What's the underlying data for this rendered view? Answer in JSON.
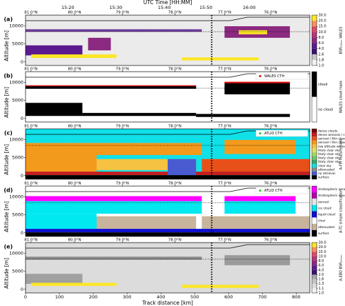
{
  "chart_data": [
    {
      "type": "heatmap",
      "panel_label": "(a)",
      "title": "UTC Time [HH:MM]",
      "ylabel": "Altitude [m]",
      "xlim": [
        0,
        840
      ],
      "ylim": [
        -1000,
        13000
      ],
      "yticks": [
        0,
        5000,
        10000
      ],
      "background": "#ebebeb",
      "x2ticks": [
        {
          "value": 125,
          "label": "15:20"
        },
        {
          "value": 267,
          "label": "15:30"
        },
        {
          "value": 410,
          "label": "15:40"
        },
        {
          "value": 533,
          "label": "15:50"
        },
        {
          "value": 661,
          "label": "16:00"
        }
      ],
      "lat_ticks": [
        {
          "value": 16,
          "label": "81.0°N"
        },
        {
          "value": 145,
          "label": "80.0°N"
        },
        {
          "value": 286,
          "label": "79.0°N"
        },
        {
          "value": 441,
          "label": "78.0°N"
        },
        {
          "value": 588,
          "label": "77.0°N"
        },
        {
          "value": 724,
          "label": "76.0°N"
        }
      ],
      "colorbar": {
        "label": "BSR₅₃₂ₙₘ WALES",
        "ticks": [
          {
            "value": 1,
            "label": "1.0"
          },
          1.8,
          2.6,
          {
            "value": 4,
            "label": "4.0"
          },
          {
            "value": 6,
            "label": "6.0"
          },
          {
            "value": 8,
            "label": "8.0"
          },
          {
            "value": 10,
            "label": "10.0"
          },
          {
            "value": 15,
            "label": "15.0"
          },
          {
            "value": 20,
            "label": "20.0"
          },
          {
            "value": 30,
            "label": "30.0"
          }
        ],
        "colors": [
          "#f2f2f2",
          "#c8c8c8",
          "#3b0f70",
          "#5c1a8f",
          "#8c2981",
          "#b73779",
          "#de4968",
          "#f7905c",
          "#fde725"
        ]
      }
    },
    {
      "type": "heatmap",
      "panel_label": "(b)",
      "ylabel": "Altitude [m]",
      "xlim": [
        0,
        840
      ],
      "ylim": [
        -1000,
        13000
      ],
      "yticks": [
        0,
        5000,
        10000
      ],
      "background": "#ffffff",
      "lat_ticks": [
        {
          "value": 16,
          "label": "81.0°N"
        },
        {
          "value": 145,
          "label": "80.0°N"
        },
        {
          "value": 286,
          "label": "79.0°N"
        },
        {
          "value": 441,
          "label": "78.0°N"
        },
        {
          "value": 588,
          "label": "77.0°N"
        },
        {
          "value": 724,
          "label": "76.0°N"
        }
      ],
      "legend": {
        "name": "WALES CTH",
        "color": "#dd1111"
      },
      "colorbar": {
        "label": "WALES cloud mask",
        "classes": [
          {
            "name": "cloud",
            "color": "#000000"
          },
          {
            "name": "no cloud",
            "color": "#ffffff"
          }
        ]
      }
    },
    {
      "type": "heatmap",
      "panel_label": "(c)",
      "ylabel": "Altitude [m]",
      "xlim": [
        0,
        840
      ],
      "ylim": [
        -1000,
        13000
      ],
      "yticks": [
        0,
        5000,
        10000
      ],
      "background": "#10e0e8",
      "lat_ticks": [
        {
          "value": 16,
          "label": "81.0°N"
        },
        {
          "value": 145,
          "label": "80.0°N"
        },
        {
          "value": 286,
          "label": "79.0°N"
        },
        {
          "value": 441,
          "label": "78.0°N"
        },
        {
          "value": 588,
          "label": "77.0°N"
        },
        {
          "value": 724,
          "label": "76.0°N"
        }
      ],
      "legend": {
        "name": "ATLID CTH",
        "color": "#22cc22"
      },
      "colorbar": {
        "label": "A-FM featuremask",
        "classes": [
          {
            "name": "dense clouds",
            "color": "#7a0000"
          },
          {
            "name": "dense aerosols / cloud",
            "color": "#c41e1e"
          },
          {
            "name": "aerosol / thin cloud",
            "color": "#e8501a"
          },
          {
            "name": "aerosol / thin cloud",
            "color": "#f39a1c"
          },
          {
            "name": "low altitude aerosol",
            "color": "#f5c242"
          },
          {
            "name": "likely clear sky",
            "color": "#d9e36a"
          },
          {
            "name": "likely clear sky",
            "color": "#a8d86a"
          },
          {
            "name": "likely clear sky",
            "color": "#6fc46a"
          },
          {
            "name": "likely clear sky",
            "color": "#3aa860"
          },
          {
            "name": "clear sky",
            "color": "#10e0e8"
          },
          {
            "name": "attenuated",
            "color": "#8a8a8a"
          },
          {
            "name": "no retrieval",
            "color": "#4a5ad0"
          },
          {
            "name": "surface",
            "color": "#000000"
          }
        ]
      }
    },
    {
      "type": "heatmap",
      "panel_label": "(d)",
      "ylabel": "Altitude [m]",
      "xlim": [
        0,
        840
      ],
      "ylim": [
        -1000,
        13000
      ],
      "yticks": [
        0,
        5000,
        10000
      ],
      "background": "#ffffff",
      "lat_ticks": [
        {
          "value": 16,
          "label": "81.0°N"
        },
        {
          "value": 145,
          "label": "80.0°N"
        },
        {
          "value": 286,
          "label": "79.0°N"
        },
        {
          "value": 441,
          "label": "78.0°N"
        },
        {
          "value": 588,
          "label": "77.0°N"
        },
        {
          "value": 724,
          "label": "76.0°N"
        }
      ],
      "legend": {
        "name": "ATLID CTH",
        "color": "#22cc22"
      },
      "colorbar": {
        "label": "A-TC simple classification",
        "classes": [
          {
            "name": "stratospheric aerosol",
            "color": "#ff00ff"
          },
          {
            "name": "stratospheric cloud",
            "color": "#b000b0"
          },
          {
            "name": "aerosol",
            "color": "#e6e6e6"
          },
          {
            "name": "ice cloud",
            "color": "#00e8f0"
          },
          {
            "name": "liquid cloud",
            "color": "#1010d0"
          },
          {
            "name": "clear",
            "color": "#ffffff"
          },
          {
            "name": "attenuated",
            "color": "#c8b49c"
          },
          {
            "name": "surface",
            "color": "#000000"
          }
        ]
      }
    },
    {
      "type": "heatmap",
      "panel_label": "(e)",
      "ylabel": "Altitude [m]",
      "xlabel": "Track distance [km]",
      "xlim": [
        0,
        840
      ],
      "ylim": [
        -1000,
        13000
      ],
      "yticks": [
        0,
        5000,
        10000
      ],
      "background": "#dcdcdc",
      "xticks": [
        0,
        100,
        200,
        300,
        400,
        500,
        600,
        700,
        800
      ],
      "lat_ticks": [
        {
          "value": 16,
          "label": "81.0°N"
        },
        {
          "value": 145,
          "label": "80.0°N"
        },
        {
          "value": 286,
          "label": "79.0°N"
        },
        {
          "value": 441,
          "label": "78.0°N"
        },
        {
          "value": 588,
          "label": "77.0°N"
        },
        {
          "value": 724,
          "label": "76.0°N"
        }
      ],
      "colorbar": {
        "label": "A-EBD BSR₃₅₅ₙₘ",
        "ticks": [
          {
            "value": 1,
            "label": "1.0"
          },
          1.1,
          1.3,
          1.6,
          {
            "value": 2,
            "label": "2.0"
          },
          {
            "value": 4,
            "label": "4.0"
          },
          {
            "value": 6,
            "label": "6.0"
          },
          {
            "value": 8,
            "label": "8.0"
          },
          {
            "value": 10,
            "label": "10.0"
          },
          {
            "value": 15,
            "label": "15.0"
          },
          {
            "value": 20,
            "label": "20.0"
          },
          {
            "value": 30,
            "label": "30.0"
          }
        ],
        "colors": [
          "#f2f2f2",
          "#dddddd",
          "#c4c4c4",
          "#a8a8a8",
          "#3b0f70",
          "#5c1a8f",
          "#8c2981",
          "#b73779",
          "#de4968",
          "#f7905c",
          "#fde725"
        ]
      }
    }
  ]
}
